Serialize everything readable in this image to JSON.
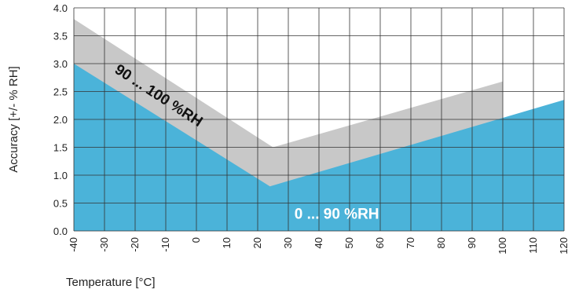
{
  "chart_data": {
    "type": "area",
    "xlabel": "Temperature [°C]",
    "ylabel": "Accuracy [+/- % RH]",
    "xlim": [
      -40,
      120
    ],
    "ylim": [
      0.0,
      4.0
    ],
    "x_ticks": [
      "-40",
      "-30",
      "-20",
      "-10",
      "0",
      "10",
      "20",
      "30",
      "40",
      "50",
      "60",
      "70",
      "80",
      "90",
      "100",
      "110",
      "120"
    ],
    "y_ticks": [
      "0.0",
      "0.5",
      "1.0",
      "1.5",
      "2.0",
      "2.5",
      "3.0",
      "3.5",
      "4.0"
    ],
    "grid": true,
    "series": [
      {
        "name": "0 ... 90 %RH",
        "color": "#4bb3d9",
        "x": [
          -40,
          24,
          120
        ],
        "y": [
          3.0,
          0.8,
          2.35
        ]
      },
      {
        "name": "90 ... 100 %RH",
        "color": "#c8c8c8",
        "x": [
          -40,
          25,
          100
        ],
        "y": [
          3.8,
          1.5,
          2.68
        ]
      }
    ]
  }
}
